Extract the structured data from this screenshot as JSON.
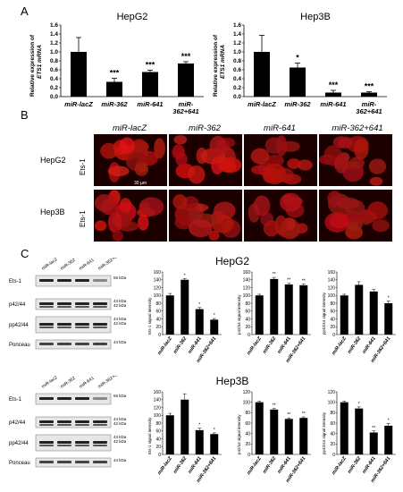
{
  "panels": {
    "a": "A",
    "b": "B",
    "c": "C"
  },
  "panel_a": {
    "ylabel_line1": "Relative expression of",
    "ylabel_line2": "ETS1 mRNA",
    "yticks": [
      "1.6",
      "1.4",
      "1.2",
      "1.0",
      "0.8",
      "0.6",
      "0.4",
      "0.2",
      "0.0"
    ],
    "xlabels": [
      "miR-lacZ",
      "miR-362",
      "miR-641",
      "miR-\n362+641"
    ]
  },
  "chart_data": [
    {
      "type": "bar",
      "title": "HepG2",
      "categories": [
        "miR-lacZ",
        "miR-362",
        "miR-641",
        "miR-362+641"
      ],
      "values": [
        1.0,
        0.33,
        0.55,
        0.74
      ],
      "errors": [
        0.32,
        0.08,
        0.04,
        0.04
      ],
      "sig": [
        "",
        "***",
        "***",
        "***"
      ],
      "ylim": [
        0,
        1.6
      ]
    },
    {
      "type": "bar",
      "title": "Hep3B",
      "categories": [
        "miR-lacZ",
        "miR-362",
        "miR-641",
        "miR-362+641"
      ],
      "values": [
        1.0,
        0.65,
        0.09,
        0.09
      ],
      "errors": [
        0.37,
        0.1,
        0.05,
        0.02
      ],
      "sig": [
        "",
        "*",
        "***",
        "***"
      ],
      "ylim": [
        0,
        1.6
      ]
    },
    {
      "type": "bar",
      "ylabel": "Ets-1 signal intensity",
      "values": [
        100,
        140,
        65,
        38
      ],
      "errors": [
        5,
        3,
        4,
        3
      ],
      "sig": [
        "",
        "*",
        "*",
        "*"
      ],
      "ylim": [
        0,
        160
      ],
      "yticks": [
        0,
        20,
        40,
        60,
        80,
        100,
        120,
        140,
        160
      ]
    },
    {
      "type": "bar",
      "ylabel": "p42/44 signal intensity",
      "values": [
        100,
        142,
        128,
        126
      ],
      "errors": [
        3,
        4,
        3,
        3
      ],
      "sig": [
        "",
        "**",
        "**",
        "**"
      ],
      "ylim": [
        0,
        160
      ],
      "yticks": [
        0,
        20,
        40,
        60,
        80,
        100,
        120,
        140,
        160
      ]
    },
    {
      "type": "bar",
      "ylabel": "pp42/44 signal intensity",
      "values": [
        100,
        127,
        110,
        80
      ],
      "errors": [
        3,
        8,
        5,
        6
      ],
      "sig": [
        "",
        "",
        "",
        "*"
      ],
      "ylim": [
        0,
        160
      ],
      "yticks": [
        0,
        20,
        40,
        60,
        80,
        100,
        120,
        140,
        160
      ]
    },
    {
      "type": "bar",
      "ylabel": "Ets-1 signal intensity",
      "values": [
        100,
        140,
        62,
        52
      ],
      "errors": [
        5,
        15,
        5,
        3
      ],
      "sig": [
        "",
        "",
        "*",
        "*"
      ],
      "ylim": [
        0,
        160
      ],
      "yticks": [
        0,
        20,
        40,
        60,
        80,
        100,
        120,
        140,
        160
      ]
    },
    {
      "type": "bar",
      "ylabel": "p42/44 signal intensity",
      "values": [
        100,
        86,
        68,
        70
      ],
      "errors": [
        2,
        2,
        2,
        2
      ],
      "sig": [
        "",
        "**",
        "**",
        "**"
      ],
      "ylim": [
        0,
        120
      ],
      "yticks": [
        0,
        20,
        40,
        60,
        80,
        100,
        120
      ]
    },
    {
      "type": "bar",
      "ylabel": "pp42/44 signal intensity",
      "values": [
        100,
        88,
        42,
        55
      ],
      "errors": [
        2,
        3,
        3,
        4
      ],
      "sig": [
        "",
        "*",
        "**",
        "*"
      ],
      "ylim": [
        0,
        120
      ],
      "yticks": [
        0,
        20,
        40,
        60,
        80,
        100,
        120
      ]
    }
  ],
  "panel_b": {
    "cols": [
      "miR-lacZ",
      "miR-362",
      "miR-641",
      "miR-362+641"
    ],
    "rows": [
      {
        "cell": "HepG2",
        "marker": "Ets-1"
      },
      {
        "cell": "Hep3B",
        "marker": "Ets-1"
      }
    ],
    "scalebar": "30 µm"
  },
  "panel_c": {
    "title1": "HepG2",
    "title2": "Hep3B",
    "lanes": [
      "miR-lacZ",
      "miR-362",
      "miR-641",
      "miR-362+641"
    ],
    "blot_labels": [
      "Ets-1",
      "p42/44",
      "pp42/44",
      "Ponceau"
    ],
    "sizes_top": [
      "55 kDa",
      "44 kDa\n42 kDa",
      "44 kDa\n42 kDa",
      "44 kDa"
    ],
    "sizes_bottom": [
      "55 kDa",
      "44 kDa\n42 kDa",
      "44 kDa\n42 kDa",
      "44 kDa"
    ]
  }
}
